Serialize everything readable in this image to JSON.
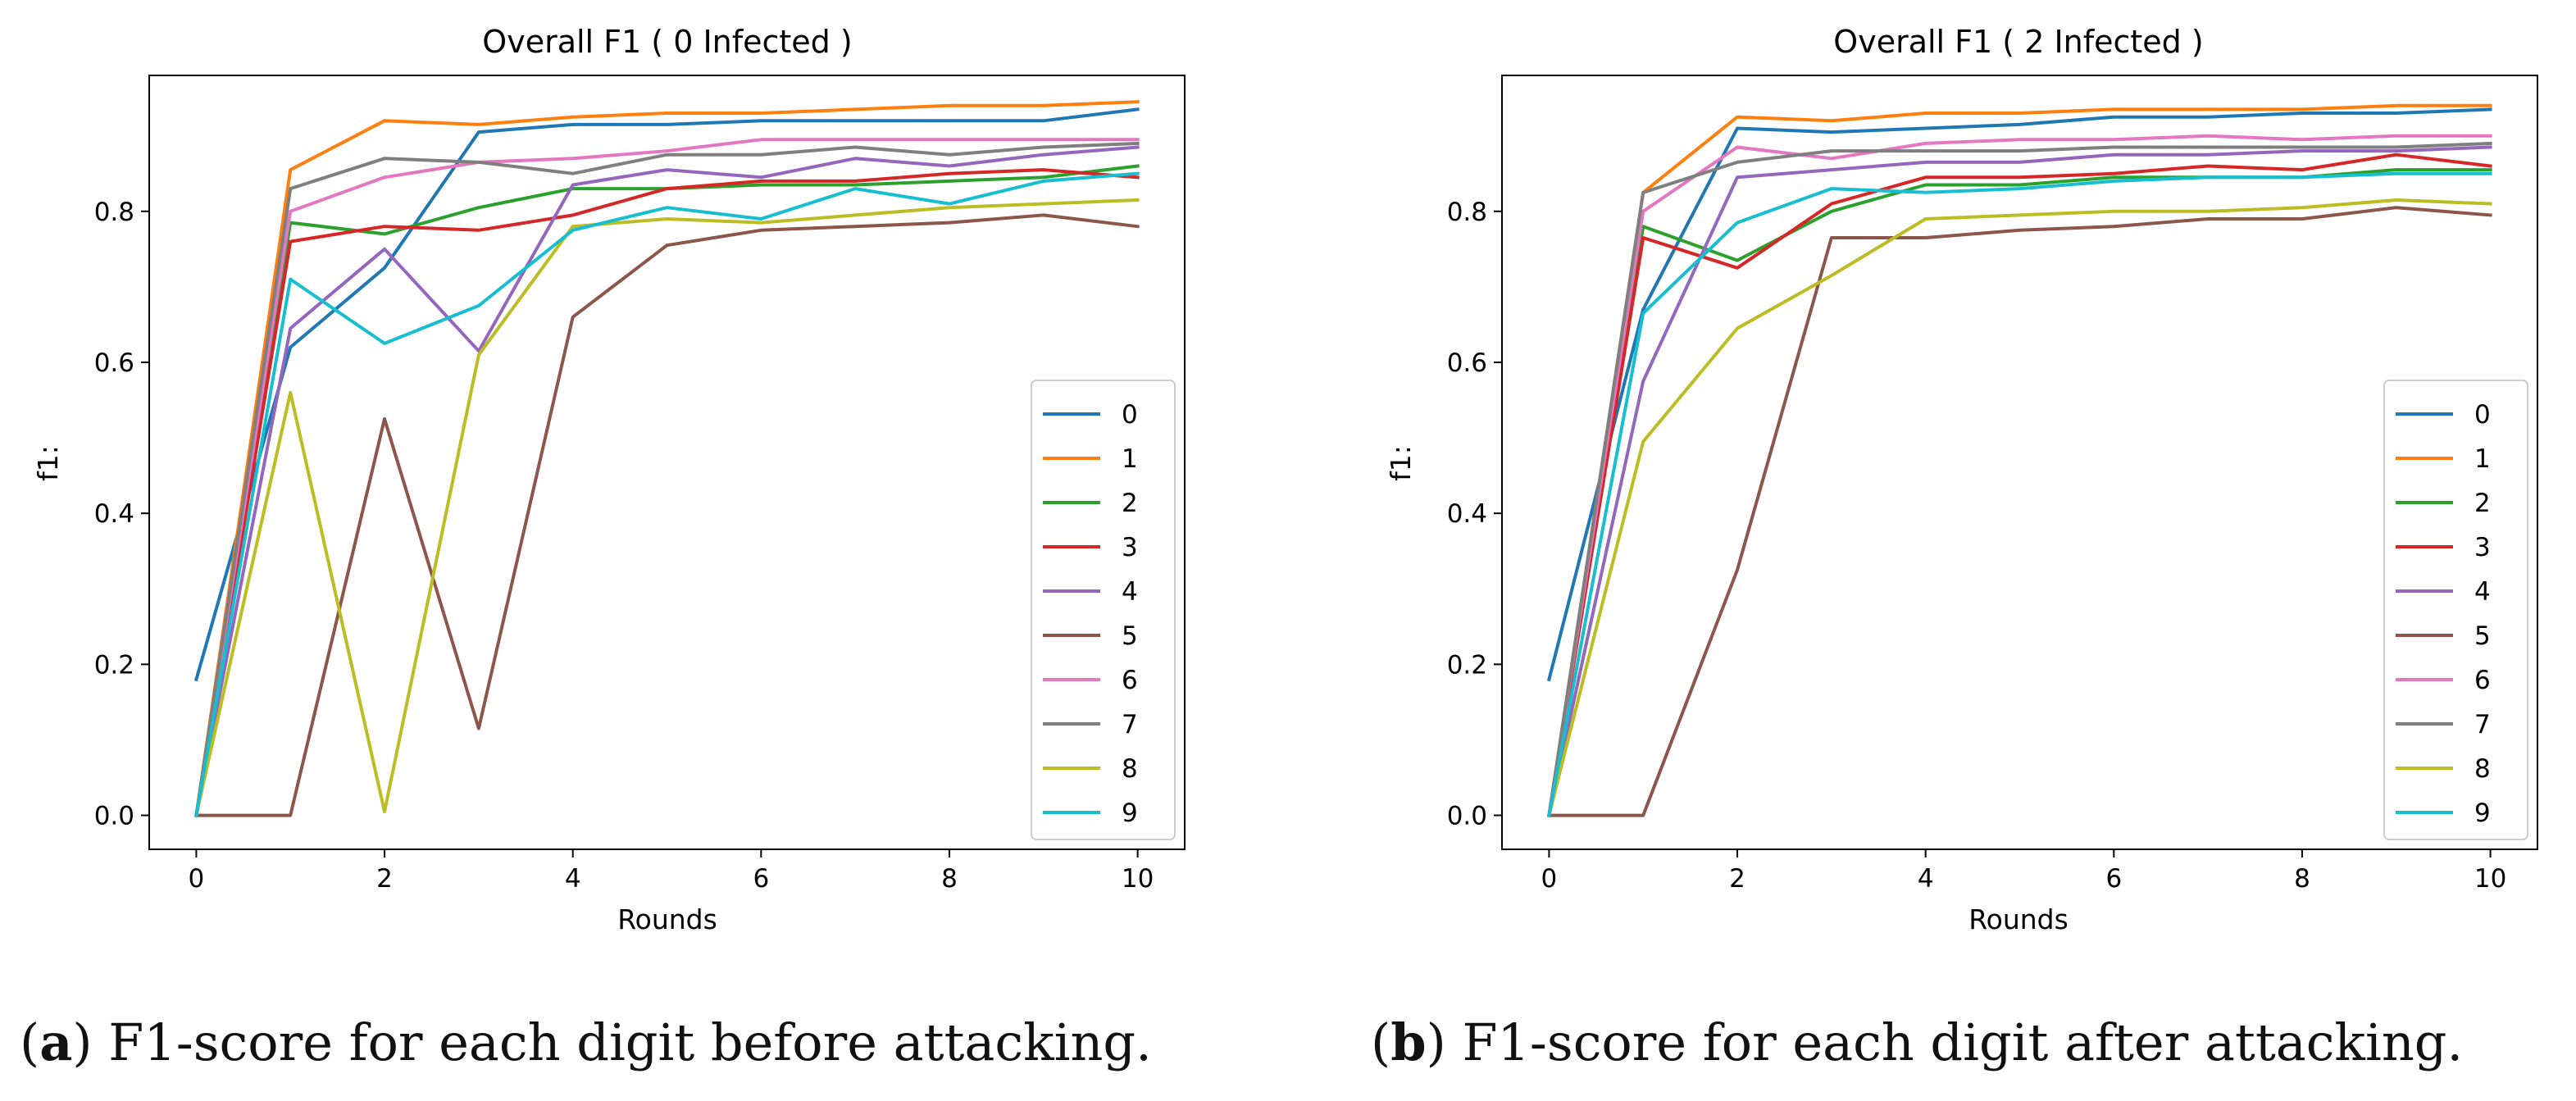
{
  "chart_data": [
    {
      "type": "line",
      "title": "Overall F1 ( 0 Infected )",
      "xlabel": "Rounds",
      "ylabel": "f1:",
      "xlim": [
        -0.5,
        10.5
      ],
      "ylim": [
        -0.045,
        0.98
      ],
      "xticks": [
        0,
        2,
        4,
        6,
        8,
        10
      ],
      "yticks": [
        0.0,
        0.2,
        0.4,
        0.6,
        0.8
      ],
      "x": [
        0,
        1,
        2,
        3,
        4,
        5,
        6,
        7,
        8,
        9,
        10
      ],
      "legend_position": "lower right",
      "series": [
        {
          "name": "0",
          "color": "#1f77b4",
          "values": [
            0.18,
            0.62,
            0.725,
            0.905,
            0.915,
            0.915,
            0.92,
            0.92,
            0.92,
            0.92,
            0.935
          ]
        },
        {
          "name": "1",
          "color": "#ff7f0e",
          "values": [
            0.0,
            0.855,
            0.92,
            0.915,
            0.925,
            0.93,
            0.93,
            0.935,
            0.94,
            0.94,
            0.945
          ]
        },
        {
          "name": "2",
          "color": "#2ca02c",
          "values": [
            0.0,
            0.785,
            0.77,
            0.805,
            0.83,
            0.83,
            0.835,
            0.835,
            0.84,
            0.845,
            0.86
          ]
        },
        {
          "name": "3",
          "color": "#d62728",
          "values": [
            0.0,
            0.76,
            0.78,
            0.775,
            0.795,
            0.83,
            0.84,
            0.84,
            0.85,
            0.855,
            0.845
          ]
        },
        {
          "name": "4",
          "color": "#9467bd",
          "values": [
            0.0,
            0.645,
            0.75,
            0.615,
            0.835,
            0.855,
            0.845,
            0.87,
            0.86,
            0.875,
            0.885
          ]
        },
        {
          "name": "5",
          "color": "#8c564b",
          "values": [
            0.0,
            0.0,
            0.525,
            0.115,
            0.66,
            0.755,
            0.775,
            0.78,
            0.785,
            0.795,
            0.78
          ]
        },
        {
          "name": "6",
          "color": "#e377c2",
          "values": [
            0.0,
            0.8,
            0.845,
            0.865,
            0.87,
            0.88,
            0.895,
            0.895,
            0.895,
            0.895,
            0.895
          ]
        },
        {
          "name": "7",
          "color": "#7f7f7f",
          "values": [
            0.0,
            0.83,
            0.87,
            0.865,
            0.85,
            0.875,
            0.875,
            0.885,
            0.875,
            0.885,
            0.89
          ]
        },
        {
          "name": "8",
          "color": "#bcbd22",
          "values": [
            0.0,
            0.56,
            0.005,
            0.61,
            0.78,
            0.79,
            0.785,
            0.795,
            0.805,
            0.81,
            0.815
          ]
        },
        {
          "name": "9",
          "color": "#17becf",
          "values": [
            0.0,
            0.71,
            0.625,
            0.675,
            0.775,
            0.805,
            0.79,
            0.83,
            0.81,
            0.84,
            0.85
          ]
        }
      ]
    },
    {
      "type": "line",
      "title": "Overall F1 ( 2 Infected )",
      "xlabel": "Rounds",
      "ylabel": "f1:",
      "xlim": [
        -0.5,
        10.5
      ],
      "ylim": [
        -0.045,
        0.98
      ],
      "xticks": [
        0,
        2,
        4,
        6,
        8,
        10
      ],
      "yticks": [
        0.0,
        0.2,
        0.4,
        0.6,
        0.8
      ],
      "x": [
        0,
        1,
        2,
        3,
        4,
        5,
        6,
        7,
        8,
        9,
        10
      ],
      "legend_position": "lower right",
      "series": [
        {
          "name": "0",
          "color": "#1f77b4",
          "values": [
            0.18,
            0.67,
            0.91,
            0.905,
            0.91,
            0.915,
            0.925,
            0.925,
            0.93,
            0.93,
            0.935
          ]
        },
        {
          "name": "1",
          "color": "#ff7f0e",
          "values": [
            0.0,
            0.825,
            0.925,
            0.92,
            0.93,
            0.93,
            0.935,
            0.935,
            0.935,
            0.94,
            0.94
          ]
        },
        {
          "name": "2",
          "color": "#2ca02c",
          "values": [
            0.0,
            0.78,
            0.735,
            0.8,
            0.835,
            0.835,
            0.845,
            0.845,
            0.845,
            0.855,
            0.855
          ]
        },
        {
          "name": "3",
          "color": "#d62728",
          "values": [
            0.0,
            0.765,
            0.725,
            0.81,
            0.845,
            0.845,
            0.85,
            0.86,
            0.855,
            0.875,
            0.86
          ]
        },
        {
          "name": "4",
          "color": "#9467bd",
          "values": [
            0.0,
            0.575,
            0.845,
            0.855,
            0.865,
            0.865,
            0.875,
            0.875,
            0.88,
            0.88,
            0.885
          ]
        },
        {
          "name": "5",
          "color": "#8c564b",
          "values": [
            0.0,
            0.0,
            0.325,
            0.765,
            0.765,
            0.775,
            0.78,
            0.79,
            0.79,
            0.805,
            0.795
          ]
        },
        {
          "name": "6",
          "color": "#e377c2",
          "values": [
            0.0,
            0.8,
            0.885,
            0.87,
            0.89,
            0.895,
            0.895,
            0.9,
            0.895,
            0.9,
            0.9
          ]
        },
        {
          "name": "7",
          "color": "#7f7f7f",
          "values": [
            0.0,
            0.825,
            0.865,
            0.88,
            0.88,
            0.88,
            0.885,
            0.885,
            0.885,
            0.885,
            0.89
          ]
        },
        {
          "name": "8",
          "color": "#bcbd22",
          "values": [
            0.0,
            0.495,
            0.645,
            0.715,
            0.79,
            0.795,
            0.8,
            0.8,
            0.805,
            0.815,
            0.81
          ]
        },
        {
          "name": "9",
          "color": "#17becf",
          "values": [
            0.0,
            0.665,
            0.785,
            0.83,
            0.825,
            0.83,
            0.84,
            0.845,
            0.845,
            0.85,
            0.85
          ]
        }
      ]
    }
  ],
  "captions": [
    {
      "label": "a",
      "text": "F1-score for each digit before attacking."
    },
    {
      "label": "b",
      "text": "F1-score for each digit after attacking."
    }
  ]
}
